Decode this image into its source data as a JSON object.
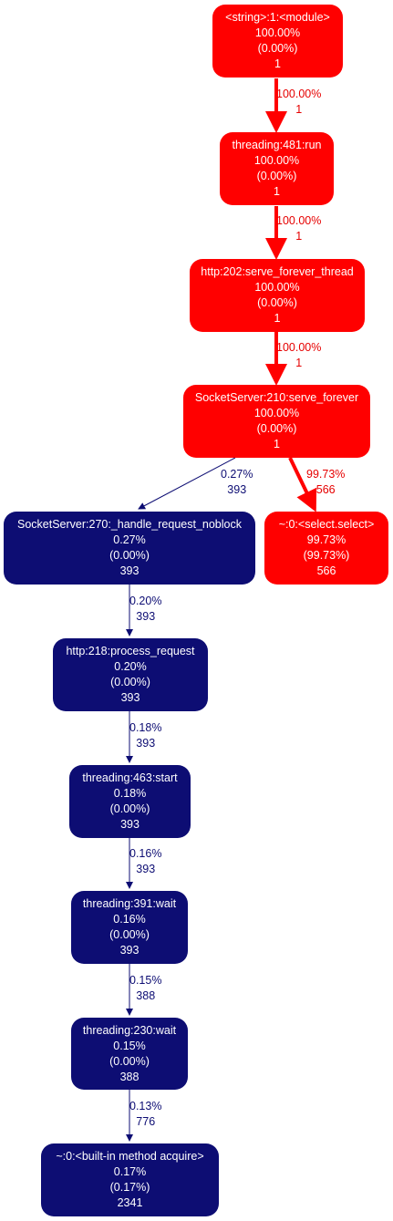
{
  "colors": {
    "hot": "#ff0000",
    "cold": "#0d0d73",
    "hot_label": "#e60000"
  },
  "nodes": {
    "module": {
      "name": "<string>:1:<module>",
      "total": "100.00%",
      "self": "(0.00%)",
      "calls": "1"
    },
    "thread_run": {
      "name": "threading:481:run",
      "total": "100.00%",
      "self": "(0.00%)",
      "calls": "1"
    },
    "serve_thread": {
      "name": "http:202:serve_forever_thread",
      "total": "100.00%",
      "self": "(0.00%)",
      "calls": "1"
    },
    "serve_forever": {
      "name": "SocketServer:210:serve_forever",
      "total": "100.00%",
      "self": "(0.00%)",
      "calls": "1"
    },
    "handle": {
      "name": "SocketServer:270:_handle_request_noblock",
      "total": "0.27%",
      "self": "(0.00%)",
      "calls": "393"
    },
    "select": {
      "name": "~:0:<select.select>",
      "total": "99.73%",
      "self": "(99.73%)",
      "calls": "566"
    },
    "process": {
      "name": "http:218:process_request",
      "total": "0.20%",
      "self": "(0.00%)",
      "calls": "393"
    },
    "start": {
      "name": "threading:463:start",
      "total": "0.18%",
      "self": "(0.00%)",
      "calls": "393"
    },
    "wait391": {
      "name": "threading:391:wait",
      "total": "0.16%",
      "self": "(0.00%)",
      "calls": "393"
    },
    "wait230": {
      "name": "threading:230:wait",
      "total": "0.15%",
      "self": "(0.00%)",
      "calls": "388"
    },
    "acquire": {
      "name": "~:0:<built-in method acquire>",
      "total": "0.17%",
      "self": "(0.17%)",
      "calls": "2341"
    }
  },
  "edges": [
    {
      "id": "e1",
      "from": "module",
      "to": "thread_run",
      "pct": "100.00%",
      "calls": "1",
      "hot": true
    },
    {
      "id": "e2",
      "from": "thread_run",
      "to": "serve_thread",
      "pct": "100.00%",
      "calls": "1",
      "hot": true
    },
    {
      "id": "e3",
      "from": "serve_thread",
      "to": "serve_forever",
      "pct": "100.00%",
      "calls": "1",
      "hot": true
    },
    {
      "id": "e4",
      "from": "serve_forever",
      "to": "handle",
      "pct": "0.27%",
      "calls": "393",
      "hot": false
    },
    {
      "id": "e5",
      "from": "serve_forever",
      "to": "select",
      "pct": "99.73%",
      "calls": "566",
      "hot": true
    },
    {
      "id": "e6",
      "from": "handle",
      "to": "process",
      "pct": "0.20%",
      "calls": "393",
      "hot": false
    },
    {
      "id": "e7",
      "from": "process",
      "to": "start",
      "pct": "0.18%",
      "calls": "393",
      "hot": false
    },
    {
      "id": "e8",
      "from": "start",
      "to": "wait391",
      "pct": "0.16%",
      "calls": "393",
      "hot": false
    },
    {
      "id": "e9",
      "from": "wait391",
      "to": "wait230",
      "pct": "0.15%",
      "calls": "388",
      "hot": false
    },
    {
      "id": "e10",
      "from": "wait230",
      "to": "acquire",
      "pct": "0.13%",
      "calls": "776",
      "hot": false
    }
  ]
}
